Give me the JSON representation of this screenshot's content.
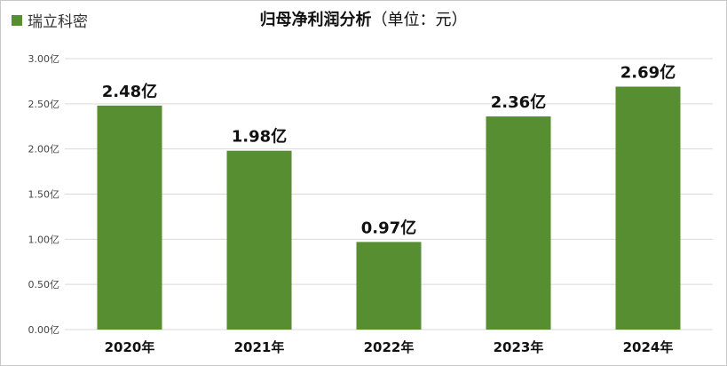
{
  "chart_data": {
    "type": "bar",
    "title": "归母净利润分析",
    "subtitle": "（单位：元）",
    "categories": [
      "2020年",
      "2021年",
      "2022年",
      "2023年",
      "2024年"
    ],
    "series": [
      {
        "name": "瑞立科密",
        "values": [
          2.48,
          1.98,
          0.97,
          2.36,
          2.69
        ],
        "data_labels": [
          "2.48亿",
          "1.98亿",
          "0.97亿",
          "2.36亿",
          "2.69亿"
        ],
        "color": "#578e32"
      }
    ],
    "ylim": [
      0,
      3.0
    ],
    "yticks": [
      {
        "value": 0,
        "label": "0.00亿"
      },
      {
        "value": 0.5,
        "label": "0.50亿"
      },
      {
        "value": 1.0,
        "label": "1.00亿"
      },
      {
        "value": 1.5,
        "label": "1.50亿"
      },
      {
        "value": 2.0,
        "label": "2.00亿"
      },
      {
        "value": 2.5,
        "label": "2.50亿"
      },
      {
        "value": 3.0,
        "label": "3.00亿"
      }
    ],
    "grid": true,
    "legend_position": "top-left",
    "gridline_color": "#d9d9d9"
  }
}
